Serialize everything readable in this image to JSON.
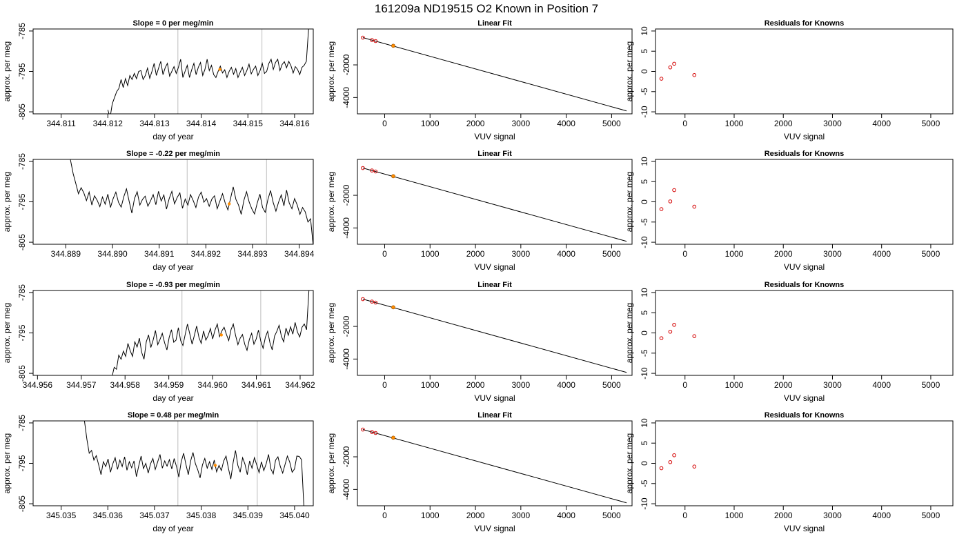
{
  "suptitle": "161209a     ND19515   O2 Known in Position  7",
  "colors": {
    "line": "#000000",
    "vline": "#c8c8c8",
    "highlight": "#ff8c00",
    "known": "#d40000"
  },
  "chart_data": [
    {
      "type": "line",
      "title": "Slope =  0  per meg/min",
      "xlabel": "day of year",
      "ylabel": "approx. per meg",
      "xlim": [
        344.8104,
        344.8164
      ],
      "ylim": [
        -805.5,
        -784.5
      ],
      "xticks": [
        "344.811",
        "344.812",
        "344.813",
        "344.814",
        "344.815",
        "344.816"
      ],
      "yticks": [
        "-785",
        "-795",
        "-805"
      ],
      "vlines": [
        344.8135,
        344.8153
      ],
      "marker": {
        "x": 344.8144,
        "y": -794.5
      },
      "trace": {
        "x_start": 344.812,
        "x_end": 344.8163,
        "y_start": -804.5,
        "y_end": -784.5,
        "samples": [
          -804.5,
          -806.5,
          -803,
          -801.5,
          -800,
          -799.2,
          -797,
          -799,
          -796.8,
          -798.5,
          -796,
          -797,
          -795.5,
          -796.8,
          -795,
          -794.8,
          -797,
          -796,
          -794.2,
          -796.7,
          -795,
          -793,
          -796,
          -794.2,
          -792.5,
          -795.8,
          -794.1,
          -793,
          -796.2,
          -795,
          -793.8,
          -795.5,
          -794,
          -792,
          -796.5,
          -795,
          -793.5,
          -796.5,
          -794.6,
          -793,
          -795.8,
          -794,
          -792.8,
          -796,
          -794.5,
          -792,
          -794.8,
          -793.5,
          -795.8,
          -796.5,
          -795,
          -793.7,
          -795.4,
          -794.6,
          -796.5,
          -795,
          -794,
          -795.7,
          -794.3,
          -796.5,
          -795.2,
          -794,
          -796,
          -794.8,
          -793.2,
          -795.6,
          -794.5,
          -793.7,
          -796,
          -794.8,
          -793,
          -795.5,
          -795,
          -793,
          -792,
          -794.5,
          -792.8,
          -792,
          -794.8,
          -793.3,
          -792.6,
          -794.1,
          -792.5,
          -793.6,
          -795.4,
          -793.8,
          -794.5,
          -795.8,
          -794,
          -793.5,
          -792.5,
          -784.5
        ]
      },
      "data_labels": [
        {
          "text": "Slope =  0  per meg/min"
        }
      ]
    },
    {
      "type": "scatter",
      "title": "Linear Fit",
      "xlabel": "VUV signal",
      "ylabel": "approx. per meg",
      "xlim": [
        -600,
        5450
      ],
      "ylim": [
        -5000,
        200
      ],
      "xticks": [
        0,
        1000,
        2000,
        3000,
        4000,
        5000
      ],
      "yticks": [
        -2000,
        -4000
      ],
      "fit_line": {
        "x": [
          -480,
          5330
        ],
        "y": [
          -330,
          -4820
        ]
      },
      "known_points": [
        [
          -480,
          -330
        ],
        [
          -280,
          -480
        ],
        [
          -200,
          -540
        ]
      ],
      "unknown_point": [
        190,
        -830
      ]
    },
    {
      "type": "scatter",
      "title": "Residuals for Knowns",
      "xlabel": "VUV signal",
      "ylabel": "approx. per meg",
      "xlim": [
        -600,
        5450
      ],
      "ylim": [
        -10.5,
        10.5
      ],
      "xticks": [
        0,
        1000,
        2000,
        3000,
        4000,
        5000
      ],
      "yticks": [
        10,
        5,
        0,
        -5,
        -10
      ],
      "points": [
        [
          -480,
          -1.8
        ],
        [
          -300,
          1.0
        ],
        [
          -220,
          1.9
        ],
        [
          190,
          -0.9
        ]
      ]
    },
    {
      "type": "line",
      "title": "Slope =  -0.22  per meg/min",
      "xlabel": "day of year",
      "ylabel": "approx. per meg",
      "xlim": [
        344.8883,
        344.8943
      ],
      "ylim": [
        -805.5,
        -784.5
      ],
      "xticks": [
        "344.889",
        "344.890",
        "344.891",
        "344.892",
        "344.893",
        "344.894"
      ],
      "yticks": [
        "-785",
        "-795",
        "-805"
      ],
      "vlines": [
        344.8916,
        344.8933
      ],
      "marker": {
        "x": 344.8925,
        "y": -795.5
      },
      "trace": {
        "x_start": 344.8891,
        "x_end": 344.8943,
        "y_start": -784.6,
        "y_end": -806,
        "samples": [
          -784.6,
          -788,
          -790.5,
          -793,
          -791.5,
          -792.8,
          -794.7,
          -792.6,
          -795.8,
          -793.5,
          -794.6,
          -796.2,
          -793.8,
          -795.6,
          -793.1,
          -796.4,
          -794.2,
          -792.6,
          -795.1,
          -796.3,
          -793.7,
          -791.8,
          -794.9,
          -797.8,
          -794.2,
          -792.5,
          -795.8,
          -794.4,
          -793.6,
          -796.1,
          -794.8,
          -793.2,
          -795.7,
          -792.4,
          -794.8,
          -793.3,
          -796.8,
          -794.2,
          -792.4,
          -795.5,
          -793.9,
          -792.8,
          -796.6,
          -794.3,
          -795.8,
          -793.2,
          -794.7,
          -796.4,
          -793.8,
          -792.6,
          -795.1,
          -794.2,
          -796.1,
          -794.3,
          -793.5,
          -796.7,
          -794.8,
          -793,
          -795.3,
          -797,
          -794.2,
          -791.3,
          -794.4,
          -795.8,
          -798.1,
          -794.6,
          -792.5,
          -795.1,
          -796.8,
          -798,
          -795.3,
          -793.1,
          -796.4,
          -797.6,
          -794.4,
          -792.2,
          -795.2,
          -797.3,
          -795.1,
          -793.3,
          -796,
          -792.1,
          -795.3,
          -796.7,
          -794.2,
          -795.8,
          -798.1,
          -796.4,
          -797.5,
          -800,
          -799.2,
          -806
        ]
      },
      "data_labels": [
        {
          "text": "Slope =  -0.22  per meg/min"
        }
      ]
    },
    {
      "type": "scatter",
      "title": "Linear Fit",
      "xlabel": "VUV signal",
      "ylabel": "approx. per meg",
      "xlim": [
        -600,
        5450
      ],
      "ylim": [
        -5000,
        200
      ],
      "xticks": [
        0,
        1000,
        2000,
        3000,
        4000,
        5000
      ],
      "yticks": [
        -2000,
        -4000
      ],
      "fit_line": {
        "x": [
          -480,
          5330
        ],
        "y": [
          -330,
          -4820
        ]
      },
      "known_points": [
        [
          -480,
          -330
        ],
        [
          -280,
          -480
        ],
        [
          -200,
          -540
        ]
      ],
      "unknown_point": [
        190,
        -830
      ]
    },
    {
      "type": "scatter",
      "title": "Residuals for Knowns",
      "xlabel": "VUV signal",
      "ylabel": "approx. per meg",
      "xlim": [
        -600,
        5450
      ],
      "ylim": [
        -10.5,
        10.5
      ],
      "xticks": [
        0,
        1000,
        2000,
        3000,
        4000,
        5000
      ],
      "yticks": [
        10,
        5,
        0,
        -5,
        -10
      ],
      "points": [
        [
          -480,
          -1.8
        ],
        [
          -300,
          0.1
        ],
        [
          -220,
          2.9
        ],
        [
          190,
          -1.2
        ]
      ]
    },
    {
      "type": "line",
      "title": "Slope =  -0.93  per meg/min",
      "xlabel": "day of year",
      "ylabel": "approx. per meg",
      "xlim": [
        344.9559,
        344.9623
      ],
      "ylim": [
        -805.5,
        -784.5
      ],
      "xticks": [
        "344.956",
        "344.957",
        "344.958",
        "344.959",
        "344.960",
        "344.961",
        "344.962"
      ],
      "yticks": [
        "-785",
        "-795",
        "-805"
      ],
      "vlines": [
        344.9593,
        344.9611
      ],
      "marker": {
        "x": 344.9602,
        "y": -795.5
      },
      "trace": {
        "x_start": 344.9577,
        "x_end": 344.9622,
        "y_start": -806,
        "y_end": -784.5,
        "samples": [
          -806,
          -803.5,
          -804,
          -800.5,
          -801.5,
          -799.5,
          -800.8,
          -797.6,
          -799.4,
          -800.8,
          -797.2,
          -798.5,
          -796.3,
          -799.8,
          -801.5,
          -797.2,
          -795.5,
          -798.6,
          -796.8,
          -794.4,
          -797.9,
          -796.6,
          -795.1,
          -797.4,
          -799.2,
          -796.1,
          -794.2,
          -797.3,
          -796.8,
          -793.7,
          -796.9,
          -798.1,
          -795.4,
          -792.8,
          -795.2,
          -797.8,
          -795.6,
          -793.3,
          -796.1,
          -797.6,
          -794.5,
          -796.8,
          -795.7,
          -793.9,
          -796.5,
          -794.3,
          -792.8,
          -795.9,
          -794.5,
          -793.6,
          -795.4,
          -796.9,
          -794.2,
          -792.8,
          -795.6,
          -797.9,
          -796.3,
          -795.4,
          -797.8,
          -799.3,
          -796.6,
          -795.1,
          -797.8,
          -796.5,
          -794.3,
          -797,
          -798.8,
          -796.1,
          -794.6,
          -797.4,
          -799.2,
          -795.8,
          -794.6,
          -793.1,
          -795.8,
          -797.2,
          -793.8,
          -795.6,
          -793.5,
          -795.3,
          -792.4,
          -794.8,
          -796,
          -793.6,
          -792.8,
          -794.2,
          -784.5
        ]
      },
      "data_labels": [
        {
          "text": "Slope =  -0.93  per meg/min"
        }
      ]
    },
    {
      "type": "scatter",
      "title": "Linear Fit",
      "xlabel": "VUV signal",
      "ylabel": "approx. per meg",
      "xlim": [
        -600,
        5450
      ],
      "ylim": [
        -5000,
        200
      ],
      "xticks": [
        0,
        1000,
        2000,
        3000,
        4000,
        5000
      ],
      "yticks": [
        -2000,
        -4000
      ],
      "fit_line": {
        "x": [
          -480,
          5330
        ],
        "y": [
          -330,
          -4820
        ]
      },
      "known_points": [
        [
          -480,
          -330
        ],
        [
          -280,
          -480
        ],
        [
          -200,
          -540
        ]
      ],
      "unknown_point": [
        190,
        -830
      ]
    },
    {
      "type": "scatter",
      "title": "Residuals for Knowns",
      "xlabel": "VUV signal",
      "ylabel": "approx. per meg",
      "xlim": [
        -600,
        5450
      ],
      "ylim": [
        -10.5,
        10.5
      ],
      "xticks": [
        0,
        1000,
        2000,
        3000,
        4000,
        5000
      ],
      "yticks": [
        10,
        5,
        0,
        -5,
        -10
      ],
      "points": [
        [
          -480,
          -1.3
        ],
        [
          -300,
          0.3
        ],
        [
          -220,
          2.0
        ],
        [
          190,
          -0.8
        ]
      ]
    },
    {
      "type": "line",
      "title": "Slope =  0.48  per meg/min",
      "xlabel": "day of year",
      "ylabel": "approx. per meg",
      "xlim": [
        345.0344,
        345.0404
      ],
      "ylim": [
        -805.5,
        -784.5
      ],
      "xticks": [
        "345.035",
        "345.036",
        "345.037",
        "345.038",
        "345.039",
        "345.040"
      ],
      "yticks": [
        "-785",
        "-795",
        "-805"
      ],
      "vlines": [
        345.0375,
        345.0392
      ],
      "marker": {
        "x": 345.0383,
        "y": -795.5
      },
      "trace": {
        "x_start": 345.0355,
        "x_end": 345.0402,
        "y_start": -784.5,
        "y_end": -806,
        "samples": [
          -784.5,
          -789,
          -792.5,
          -791.8,
          -794.2,
          -793.1,
          -795.4,
          -797.8,
          -794.6,
          -795.8,
          -793.9,
          -797.2,
          -795.1,
          -793.6,
          -796.5,
          -794.2,
          -795.8,
          -793.4,
          -796.7,
          -794.6,
          -796.1,
          -794.4,
          -798.3,
          -795.6,
          -793.2,
          -796.3,
          -795,
          -797.4,
          -795.1,
          -793.8,
          -796.5,
          -794.7,
          -792.8,
          -796.2,
          -794.4,
          -795.7,
          -794.1,
          -796.4,
          -793.8,
          -795.8,
          -798.4,
          -794.6,
          -792.5,
          -795.3,
          -797.8,
          -794.4,
          -792.3,
          -795.1,
          -796.6,
          -798.6,
          -795.4,
          -793.8,
          -796.2,
          -794.6,
          -796.5,
          -794.2,
          -797.1,
          -795.5,
          -796.8,
          -794.4,
          -793.2,
          -796.2,
          -798.9,
          -794.8,
          -791.8,
          -795.5,
          -797.2,
          -793.6,
          -795.2,
          -797.8,
          -794.4,
          -796.2,
          -793.6,
          -795.4,
          -797.3,
          -794.6,
          -796.8,
          -795.1,
          -792.8,
          -796.4,
          -797.6,
          -794.2,
          -793.4,
          -795.8,
          -797.4,
          -795.3,
          -793.2,
          -794.7,
          -797.2,
          -796.4,
          -793.2,
          -793.3,
          -794.1,
          -806
        ]
      },
      "data_labels": [
        {
          "text": "Slope =  0.48  per meg/min"
        }
      ]
    },
    {
      "type": "scatter",
      "title": "Linear Fit",
      "xlabel": "VUV signal",
      "ylabel": "approx. per meg",
      "xlim": [
        -600,
        5450
      ],
      "ylim": [
        -5000,
        200
      ],
      "xticks": [
        0,
        1000,
        2000,
        3000,
        4000,
        5000
      ],
      "yticks": [
        -2000,
        -4000
      ],
      "fit_line": {
        "x": [
          -480,
          5330
        ],
        "y": [
          -330,
          -4820
        ]
      },
      "known_points": [
        [
          -480,
          -330
        ],
        [
          -280,
          -480
        ],
        [
          -200,
          -540
        ]
      ],
      "unknown_point": [
        190,
        -830
      ]
    },
    {
      "type": "scatter",
      "title": "Residuals for Knowns",
      "xlabel": "VUV signal",
      "ylabel": "approx. per meg",
      "xlim": [
        -600,
        5450
      ],
      "ylim": [
        -10.5,
        10.5
      ],
      "xticks": [
        0,
        1000,
        2000,
        3000,
        4000,
        5000
      ],
      "yticks": [
        10,
        5,
        0,
        -5,
        -10
      ],
      "points": [
        [
          -480,
          -1.2
        ],
        [
          -300,
          0.3
        ],
        [
          -220,
          2.0
        ],
        [
          190,
          -0.8
        ]
      ]
    }
  ]
}
